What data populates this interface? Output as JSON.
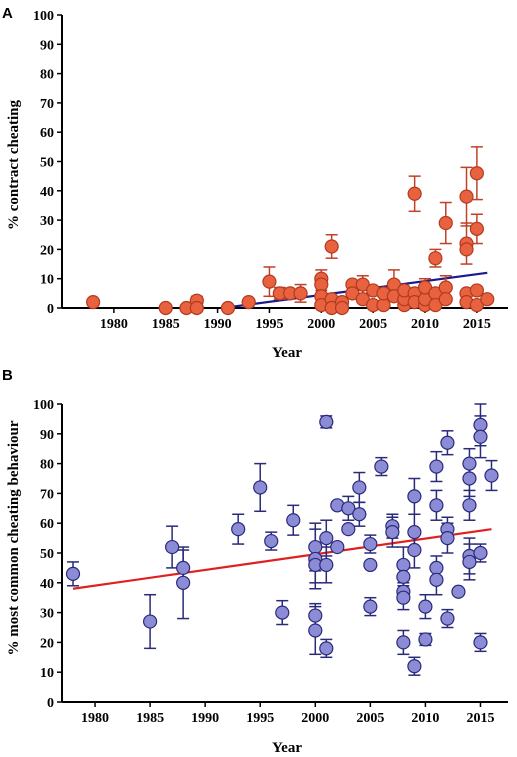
{
  "chart_data": [
    {
      "panel": "A",
      "type": "scatter",
      "xlabel": "Year",
      "ylabel": "% contract cheating",
      "xlim": [
        1975,
        2018
      ],
      "ylim": [
        0,
        100
      ],
      "xticks": [
        1980,
        1985,
        1990,
        1995,
        2000,
        2005,
        2010,
        2015
      ],
      "yticks": [
        0,
        10,
        20,
        30,
        40,
        50,
        60,
        70,
        80,
        90,
        100
      ],
      "marker_color": "#e8623f",
      "marker_edge": "#b23a1e",
      "errorbar_color": "#c0402a",
      "trendline_color": "#1a1a8c",
      "trendline": {
        "x": [
          1990.5,
          2016
        ],
        "y": [
          0,
          12
        ]
      },
      "points": [
        {
          "x": 1978,
          "y": 2
        },
        {
          "x": 1985,
          "y": 0
        },
        {
          "x": 1987,
          "y": 0
        },
        {
          "x": 1988,
          "y": 2.5,
          "err": 1.5
        },
        {
          "x": 1988,
          "y": 0
        },
        {
          "x": 1991,
          "y": 0
        },
        {
          "x": 1993,
          "y": 2
        },
        {
          "x": 1995,
          "y": 9,
          "err": 5
        },
        {
          "x": 1996,
          "y": 5,
          "err": 2
        },
        {
          "x": 1997,
          "y": 5
        },
        {
          "x": 1998,
          "y": 5,
          "err": 3
        },
        {
          "x": 2000,
          "y": 10,
          "err": 3
        },
        {
          "x": 2000,
          "y": 8
        },
        {
          "x": 2000,
          "y": 4,
          "err": 2
        },
        {
          "x": 2000,
          "y": 1
        },
        {
          "x": 2001,
          "y": 21,
          "err": 4
        },
        {
          "x": 2001,
          "y": 3
        },
        {
          "x": 2001,
          "y": 0
        },
        {
          "x": 2002,
          "y": 2
        },
        {
          "x": 2002,
          "y": 0
        },
        {
          "x": 2003,
          "y": 8
        },
        {
          "x": 2003,
          "y": 5
        },
        {
          "x": 2004,
          "y": 8,
          "err": 3
        },
        {
          "x": 2004,
          "y": 3
        },
        {
          "x": 2005,
          "y": 1
        },
        {
          "x": 2005,
          "y": 6
        },
        {
          "x": 2006,
          "y": 1
        },
        {
          "x": 2006,
          "y": 5
        },
        {
          "x": 2007,
          "y": 8,
          "err": 5
        },
        {
          "x": 2007,
          "y": 4
        },
        {
          "x": 2008,
          "y": 1
        },
        {
          "x": 2008,
          "y": 3,
          "err": 2
        },
        {
          "x": 2008,
          "y": 6
        },
        {
          "x": 2009,
          "y": 39,
          "err": 6
        },
        {
          "x": 2009,
          "y": 5
        },
        {
          "x": 2009,
          "y": 2
        },
        {
          "x": 2010,
          "y": 1
        },
        {
          "x": 2010,
          "y": 3
        },
        {
          "x": 2010,
          "y": 7,
          "err": 3
        },
        {
          "x": 2011,
          "y": 17,
          "err": 3
        },
        {
          "x": 2011,
          "y": 5
        },
        {
          "x": 2011,
          "y": 1
        },
        {
          "x": 2012,
          "y": 29,
          "err": 7
        },
        {
          "x": 2012,
          "y": 7,
          "err": 4
        },
        {
          "x": 2012,
          "y": 3
        },
        {
          "x": 2014,
          "y": 38,
          "err": 10
        },
        {
          "x": 2014,
          "y": 22,
          "err": 7
        },
        {
          "x": 2014,
          "y": 20
        },
        {
          "x": 2014,
          "y": 5
        },
        {
          "x": 2014,
          "y": 2
        },
        {
          "x": 2015,
          "y": 46,
          "err": 9
        },
        {
          "x": 2015,
          "y": 27,
          "err": 5
        },
        {
          "x": 2015,
          "y": 6
        },
        {
          "x": 2015,
          "y": 1
        },
        {
          "x": 2016,
          "y": 3
        }
      ]
    },
    {
      "panel": "B",
      "type": "scatter",
      "xlabel": "Year",
      "ylabel": "% most common cheating behaviour",
      "xlim": [
        1977,
        2017.5
      ],
      "ylim": [
        0,
        100
      ],
      "xticks": [
        1980,
        1985,
        1990,
        1995,
        2000,
        2005,
        2010,
        2015
      ],
      "yticks": [
        0,
        10,
        20,
        30,
        40,
        50,
        60,
        70,
        80,
        90,
        100
      ],
      "marker_color": "#8c8cd6",
      "marker_edge": "#2a2a7a",
      "errorbar_color": "#2a2a7a",
      "trendline_color": "#e02020",
      "trendline": {
        "x": [
          1978,
          2016
        ],
        "y": [
          38,
          58
        ]
      },
      "points": [
        {
          "x": 1978,
          "y": 43,
          "err": 4
        },
        {
          "x": 1985,
          "y": 27,
          "err": 9
        },
        {
          "x": 1987,
          "y": 52,
          "err": 7
        },
        {
          "x": 1988,
          "y": 45,
          "err": 6
        },
        {
          "x": 1988,
          "y": 40,
          "err": 12
        },
        {
          "x": 1993,
          "y": 58,
          "err": 5
        },
        {
          "x": 1995,
          "y": 72,
          "err": 8
        },
        {
          "x": 1996,
          "y": 54,
          "err": 3
        },
        {
          "x": 1997,
          "y": 30,
          "err": 4
        },
        {
          "x": 1998,
          "y": 61,
          "err": 5
        },
        {
          "x": 2000,
          "y": 52,
          "err": 8
        },
        {
          "x": 2000,
          "y": 48,
          "err": 10
        },
        {
          "x": 2000,
          "y": 46,
          "err": 6
        },
        {
          "x": 2000,
          "y": 29,
          "err": 4
        },
        {
          "x": 2000,
          "y": 24,
          "err": 8
        },
        {
          "x": 2001,
          "y": 94,
          "err": 2
        },
        {
          "x": 2001,
          "y": 55,
          "err": 6
        },
        {
          "x": 2001,
          "y": 46,
          "err": 6
        },
        {
          "x": 2001,
          "y": 18,
          "err": 3
        },
        {
          "x": 2002,
          "y": 66
        },
        {
          "x": 2002,
          "y": 52
        },
        {
          "x": 2003,
          "y": 65,
          "err": 4
        },
        {
          "x": 2003,
          "y": 58
        },
        {
          "x": 2004,
          "y": 72,
          "err": 5
        },
        {
          "x": 2004,
          "y": 63,
          "err": 4
        },
        {
          "x": 2005,
          "y": 53,
          "err": 3
        },
        {
          "x": 2005,
          "y": 46
        },
        {
          "x": 2005,
          "y": 32,
          "err": 3
        },
        {
          "x": 2006,
          "y": 79,
          "err": 3
        },
        {
          "x": 2007,
          "y": 59,
          "err": 4
        },
        {
          "x": 2007,
          "y": 57,
          "err": 5
        },
        {
          "x": 2008,
          "y": 46,
          "err": 6
        },
        {
          "x": 2008,
          "y": 42,
          "err": 5
        },
        {
          "x": 2008,
          "y": 37
        },
        {
          "x": 2008,
          "y": 35,
          "err": 4
        },
        {
          "x": 2008,
          "y": 20,
          "err": 4
        },
        {
          "x": 2009,
          "y": 69,
          "err": 6
        },
        {
          "x": 2009,
          "y": 57,
          "err": 6
        },
        {
          "x": 2009,
          "y": 51,
          "err": 6
        },
        {
          "x": 2009,
          "y": 12,
          "err": 3
        },
        {
          "x": 2010,
          "y": 32,
          "err": 4
        },
        {
          "x": 2010,
          "y": 21,
          "err": 2
        },
        {
          "x": 2011,
          "y": 79,
          "err": 5
        },
        {
          "x": 2011,
          "y": 66,
          "err": 5
        },
        {
          "x": 2011,
          "y": 45,
          "err": 4
        },
        {
          "x": 2011,
          "y": 41,
          "err": 5
        },
        {
          "x": 2012,
          "y": 87,
          "err": 4
        },
        {
          "x": 2012,
          "y": 58,
          "err": 4
        },
        {
          "x": 2012,
          "y": 55,
          "err": 5
        },
        {
          "x": 2012,
          "y": 28,
          "err": 3
        },
        {
          "x": 2013,
          "y": 37
        },
        {
          "x": 2014,
          "y": 80,
          "err": 5
        },
        {
          "x": 2014,
          "y": 75,
          "err": 6
        },
        {
          "x": 2014,
          "y": 66,
          "err": 5
        },
        {
          "x": 2014,
          "y": 49,
          "err": 6
        },
        {
          "x": 2014,
          "y": 47,
          "err": 6
        },
        {
          "x": 2015,
          "y": 93,
          "err": 7
        },
        {
          "x": 2015,
          "y": 89,
          "err": 7
        },
        {
          "x": 2015,
          "y": 50,
          "err": 3
        },
        {
          "x": 2015,
          "y": 20,
          "err": 3
        },
        {
          "x": 2016,
          "y": 76,
          "err": 5
        }
      ]
    }
  ],
  "labels": {
    "panel_a": "A",
    "panel_b": "B",
    "a_ylabel": "% contract cheating",
    "a_xlabel": "Year",
    "b_ylabel": "% most common cheating behaviour",
    "b_xlabel": "Year"
  }
}
